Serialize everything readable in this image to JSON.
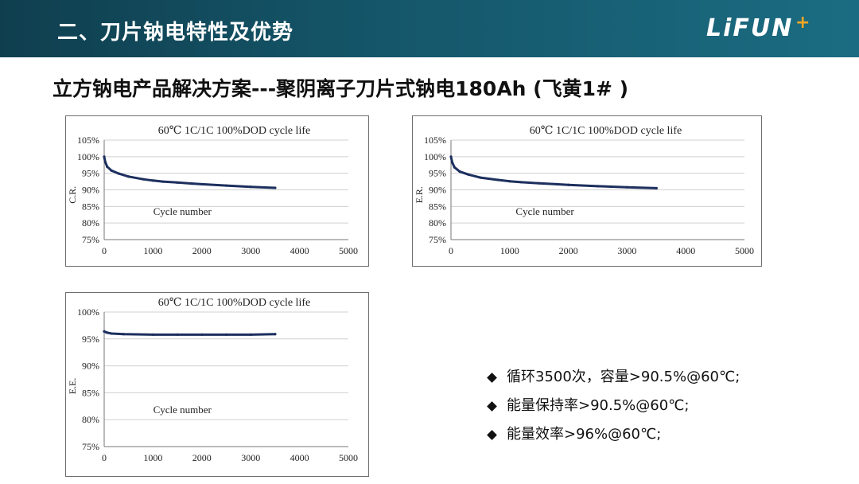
{
  "header": {
    "title": "二、刀片钠电特性及优势",
    "logo": "LiFUN",
    "logo_mark": "+"
  },
  "subtitle": "立方钠电产品解决方案---聚阴离子刀片式钠电180Ah (飞黄1# )",
  "chart_data": [
    {
      "type": "line",
      "title": "60℃ 1C/1C 100%DOD cycle life",
      "xlabel": "Cycle number",
      "ylabel": "C.R.",
      "xlim": [
        0,
        5000
      ],
      "ylim": [
        75,
        105
      ],
      "x_ticks": [
        "0",
        "1000",
        "2000",
        "3000",
        "4000",
        "5000"
      ],
      "y_ticks": [
        "75%",
        "80%",
        "85%",
        "90%",
        "95%",
        "100%",
        "105%"
      ],
      "x": [
        0,
        20,
        60,
        150,
        300,
        500,
        800,
        1000,
        1200,
        1500,
        1800,
        2000,
        2500,
        3000,
        3500
      ],
      "values": [
        100,
        98.5,
        97,
        95.8,
        94.9,
        94.0,
        93.2,
        92.8,
        92.5,
        92.2,
        91.9,
        91.7,
        91.3,
        90.9,
        90.6
      ]
    },
    {
      "type": "line",
      "title": "60℃ 1C/1C 100%DOD cycle life",
      "xlabel": "Cycle number",
      "ylabel": "E.R.",
      "xlim": [
        0,
        5000
      ],
      "ylim": [
        75,
        105
      ],
      "x_ticks": [
        "0",
        "1000",
        "2000",
        "3000",
        "4000",
        "5000"
      ],
      "y_ticks": [
        "75%",
        "80%",
        "85%",
        "90%",
        "95%",
        "100%",
        "105%"
      ],
      "x": [
        0,
        20,
        60,
        150,
        300,
        500,
        800,
        1000,
        1200,
        1500,
        1800,
        2000,
        2500,
        3000,
        3500
      ],
      "values": [
        100,
        98.3,
        96.8,
        95.5,
        94.6,
        93.7,
        93.0,
        92.6,
        92.3,
        92.0,
        91.7,
        91.5,
        91.1,
        90.8,
        90.5
      ]
    },
    {
      "type": "line",
      "title": "60℃ 1C/1C 100%DOD cycle life",
      "xlabel": "Cycle number",
      "ylabel": "E.E.",
      "xlim": [
        0,
        5000
      ],
      "ylim": [
        75,
        100
      ],
      "x_ticks": [
        "0",
        "1000",
        "2000",
        "3000",
        "4000",
        "5000"
      ],
      "y_ticks": [
        "75%",
        "80%",
        "85%",
        "90%",
        "95%",
        "100%"
      ],
      "x": [
        0,
        50,
        150,
        400,
        1000,
        1500,
        2000,
        2500,
        3000,
        3500
      ],
      "values": [
        96.4,
        96.2,
        96.0,
        95.9,
        95.8,
        95.8,
        95.8,
        95.8,
        95.8,
        95.9
      ]
    }
  ],
  "bullets": [
    "循环3500次，容量>90.5%@60℃;",
    "能量保持率>90.5%@60℃;",
    "能量效率>96%@60℃;"
  ]
}
